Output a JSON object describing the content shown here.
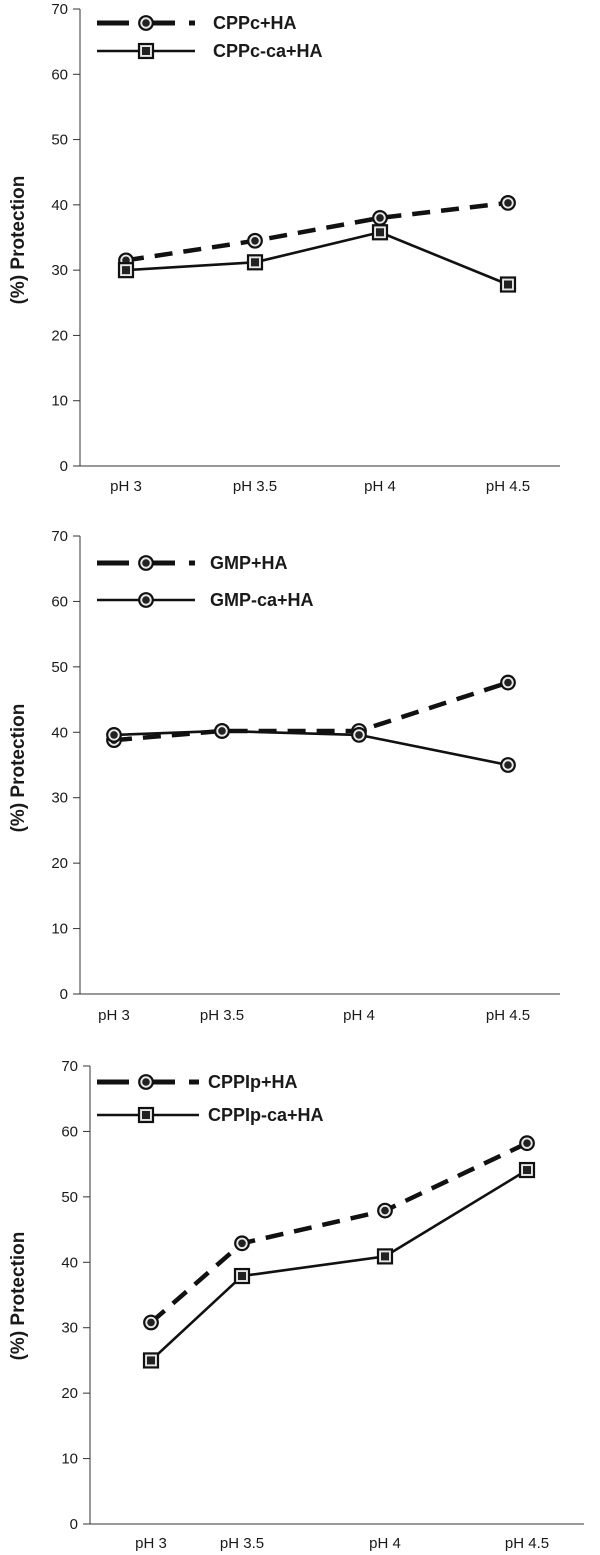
{
  "chart_data": [
    {
      "type": "line",
      "categories": [
        "pH 3",
        "pH 3.5",
        "pH 4",
        "pH 4.5"
      ],
      "ylabel": "(%) Protection",
      "xlabel": "",
      "ylim": [
        0,
        70
      ],
      "yticks": [
        0,
        10,
        20,
        30,
        40,
        50,
        60,
        70
      ],
      "grid": false,
      "legend_position": "top-left",
      "series": [
        {
          "name": "CPPc+HA",
          "values": [
            31.5,
            34.5,
            38.0,
            40.3
          ],
          "line_style": "dashed",
          "marker": "circle"
        },
        {
          "name": "CPPc-ca+HA",
          "values": [
            30.0,
            31.2,
            35.8,
            27.8
          ],
          "line_style": "solid",
          "marker": "square"
        }
      ]
    },
    {
      "type": "line",
      "categories": [
        "pH 3",
        "pH 3.5",
        "pH 4",
        "pH 4.5"
      ],
      "ylabel": "(%) Protection",
      "xlabel": "",
      "ylim": [
        0,
        70
      ],
      "yticks": [
        0,
        10,
        20,
        30,
        40,
        50,
        60,
        70
      ],
      "grid": false,
      "legend_position": "top-left",
      "series": [
        {
          "name": "GMP+HA",
          "values": [
            38.8,
            40.2,
            40.2,
            47.6
          ],
          "line_style": "dashed",
          "marker": "circle"
        },
        {
          "name": "GMP-ca+HA",
          "values": [
            39.6,
            40.2,
            39.6,
            35.0
          ],
          "line_style": "solid",
          "marker": "circle"
        }
      ]
    },
    {
      "type": "line",
      "categories": [
        "pH 3",
        "pH 3.5",
        "pH 4",
        "pH 4.5"
      ],
      "ylabel": "(%) Protection",
      "xlabel": "",
      "ylim": [
        0,
        70
      ],
      "yticks": [
        0,
        10,
        20,
        30,
        40,
        50,
        60,
        70
      ],
      "grid": false,
      "legend_position": "top-left",
      "series": [
        {
          "name": "CPPIp+HA",
          "values": [
            30.8,
            42.9,
            47.9,
            58.2
          ],
          "line_style": "dashed",
          "marker": "circle"
        },
        {
          "name": "CPPIp-ca+HA",
          "values": [
            25.0,
            37.9,
            40.9,
            54.1
          ],
          "line_style": "solid",
          "marker": "square"
        }
      ]
    }
  ]
}
